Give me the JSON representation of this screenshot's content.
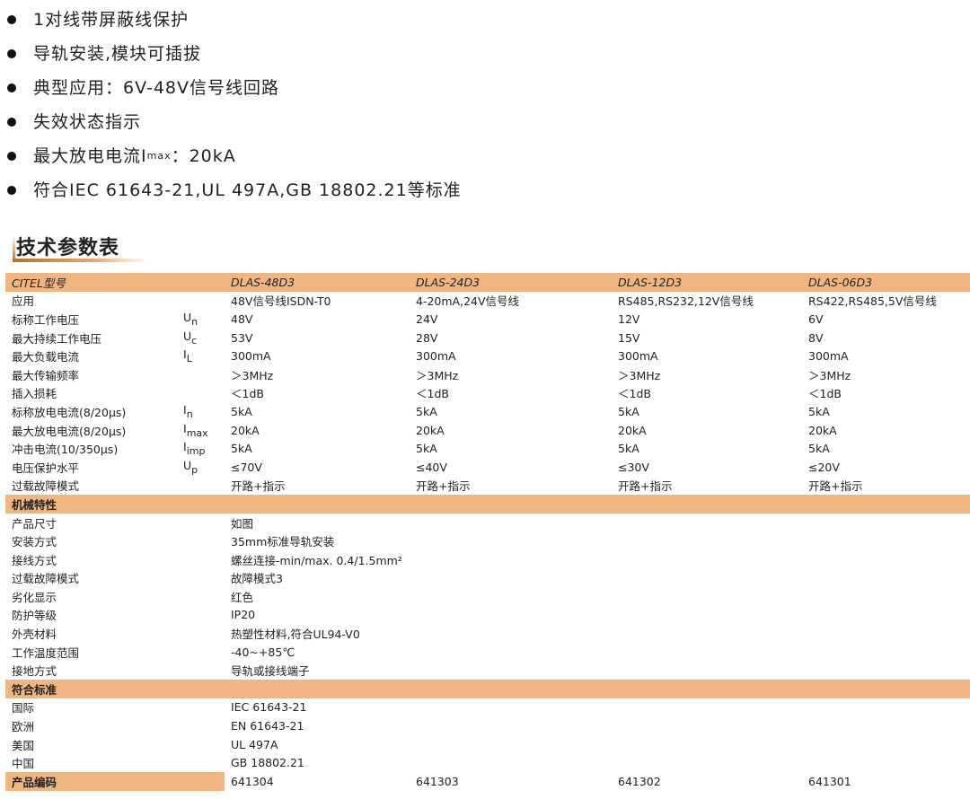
{
  "bullets": [
    {
      "text": "1对线带屏蔽线保护"
    },
    {
      "text": "导轨安装,模块可插拔"
    },
    {
      "text": "典型应用：6V-48V信号线回路"
    },
    {
      "text": "失效状态指示"
    },
    {
      "text": "最大放电电流I",
      "sub": "max",
      "after": "：20kA"
    },
    {
      "text": "符合IEC 61643-21,UL 497A,GB 18802.21等标准"
    }
  ],
  "section_title": "技术参数表",
  "colors": {
    "header_bg": "#f0b682",
    "accent": "#c07a3a"
  },
  "table": {
    "header": {
      "label": "CITEL型号",
      "models": [
        "DLAS-48D3",
        "DLAS-24D3",
        "DLAS-12D3",
        "DLAS-06D3"
      ]
    },
    "electrical": [
      {
        "label": "应用",
        "values": [
          "48V信号线ISDN-T0",
          "4-20mA,24V信号线",
          "RS485,RS232,12V信号线",
          "RS422,RS485,5V信号线"
        ]
      },
      {
        "label": "标称工作电压",
        "sym": "U",
        "sub": "n",
        "values": [
          "48V",
          "24V",
          "12V",
          "6V"
        ]
      },
      {
        "label": "最大持续工作电压",
        "sym": "U",
        "sub": "c",
        "values": [
          "53V",
          "28V",
          "15V",
          "8V"
        ]
      },
      {
        "label": "最大负载电流",
        "sym": "I",
        "sub": "L",
        "values": [
          "300mA",
          "300mA",
          "300mA",
          "300mA"
        ]
      },
      {
        "label": "最大传输频率",
        "values": [
          "＞3MHz",
          "＞3MHz",
          "＞3MHz",
          "＞3MHz"
        ]
      },
      {
        "label": "插入损耗",
        "values": [
          "＜1dB",
          "＜1dB",
          "＜1dB",
          "＜1dB"
        ]
      },
      {
        "label": "标称放电电流(8/20μs)",
        "sym": "I",
        "sub": "n",
        "values": [
          "5kA",
          "5kA",
          "5kA",
          "5kA"
        ]
      },
      {
        "label": "最大放电电流(8/20μs)",
        "sym": "I",
        "sub": "max",
        "values": [
          "20kA",
          "20kA",
          "20kA",
          "20kA"
        ]
      },
      {
        "label": "冲击电流(10/350μs)",
        "sym": "I",
        "sub": "imp",
        "values": [
          "5kA",
          "5kA",
          "5kA",
          "5kA"
        ]
      },
      {
        "label": "电压保护水平",
        "sym": "U",
        "sub": "p",
        "values": [
          "≤70V",
          "≤40V",
          "≤30V",
          "≤20V"
        ]
      },
      {
        "label": "过载故障模式",
        "values": [
          "开路+指示",
          "开路+指示",
          "开路+指示",
          "开路+指示"
        ]
      }
    ],
    "mechanical_title": "机械特性",
    "mechanical": [
      {
        "label": "产品尺寸",
        "value": "如图"
      },
      {
        "label": "安装方式",
        "value": "35mm标准导轨安装"
      },
      {
        "label": "接线方式",
        "value": "螺丝连接-min/max. 0.4/1.5mm²"
      },
      {
        "label": "过载故障模式",
        "value": "故障模式3"
      },
      {
        "label": "劣化显示",
        "value": "红色"
      },
      {
        "label": "防护等级",
        "value": "IP20"
      },
      {
        "label": "外壳材料",
        "value": "热塑性材料,符合UL94-V0"
      },
      {
        "label": "工作温度范围",
        "value": "-40~+85℃"
      },
      {
        "label": "接地方式",
        "value": "导轨或接线端子"
      }
    ],
    "standards_title": "符合标准",
    "standards": [
      {
        "label": "国际",
        "value": "IEC 61643-21"
      },
      {
        "label": "欧洲",
        "value": "EN 61643-21"
      },
      {
        "label": "美国",
        "value": "UL 497A"
      },
      {
        "label": "中国",
        "value": "GB 18802.21"
      }
    ],
    "codes": {
      "label": "产品编码",
      "values": [
        "641304",
        "641303",
        "641302",
        "641301"
      ]
    }
  }
}
